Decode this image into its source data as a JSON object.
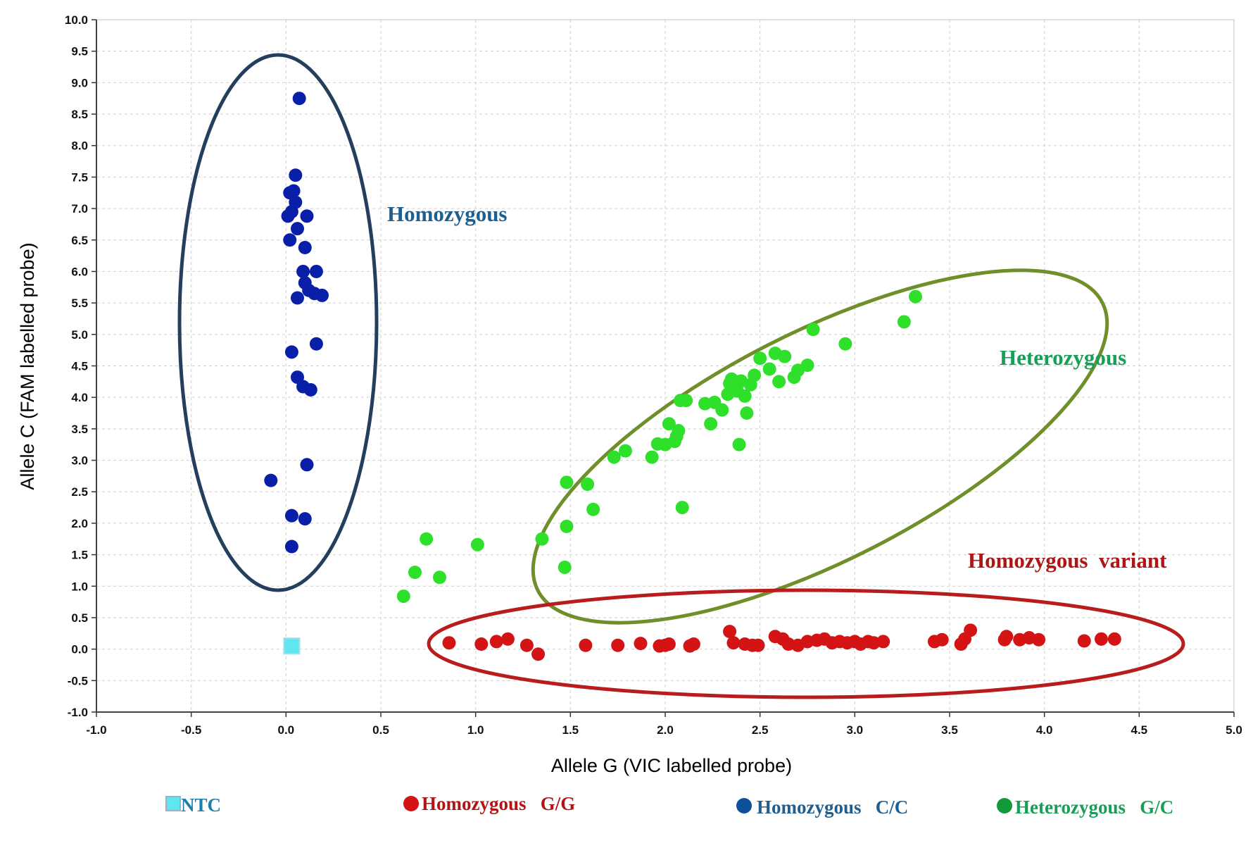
{
  "chart_data": {
    "type": "scatter",
    "xlabel": "Allele G (VIC labelled probe)",
    "ylabel": "Allele C (FAM labelled probe)",
    "xlim": [
      -1.0,
      5.0
    ],
    "ylim": [
      -1.0,
      10.0
    ],
    "x_ticks": [
      "-1.0",
      "-0.5",
      "0.0",
      "0.5",
      "1.0",
      "1.5",
      "2.0",
      "2.5",
      "3.0",
      "3.5",
      "4.0",
      "4.5",
      "5.0"
    ],
    "y_ticks": [
      "-1.0",
      "-0.5",
      "0.0",
      "0.5",
      "1.0",
      "1.5",
      "2.0",
      "2.5",
      "3.0",
      "3.5",
      "4.0",
      "4.5",
      "5.0",
      "5.5",
      "6.0",
      "6.5",
      "7.0",
      "7.5",
      "8.0",
      "8.5",
      "9.0",
      "9.5",
      "10.0"
    ],
    "grid": true,
    "legend_position": "bottom",
    "annotations": [
      {
        "text": "Homozygous",
        "color": "#1f5f8f"
      },
      {
        "text": "Heterozygous",
        "color": "#17a055"
      },
      {
        "text": "Homozygous  variant",
        "color": "#b01414"
      }
    ],
    "series": [
      {
        "name": "NTC",
        "legend_label": "NTC",
        "color": "#5fe6ee",
        "marker": "square",
        "points": [
          [
            0.03,
            0.05
          ]
        ]
      },
      {
        "name": "Homozygous G/G",
        "legend_label": "Homozygous   G/G",
        "color": "#d41414",
        "marker": "circle",
        "points": [
          [
            0.86,
            0.1
          ],
          [
            1.03,
            0.08
          ],
          [
            1.11,
            0.12
          ],
          [
            1.17,
            0.16
          ],
          [
            1.27,
            0.06
          ],
          [
            1.33,
            -0.08
          ],
          [
            1.58,
            0.06
          ],
          [
            1.75,
            0.06
          ],
          [
            1.87,
            0.09
          ],
          [
            1.97,
            0.05
          ],
          [
            2.0,
            0.06
          ],
          [
            2.02,
            0.08
          ],
          [
            2.13,
            0.05
          ],
          [
            2.15,
            0.08
          ],
          [
            2.34,
            0.28
          ],
          [
            2.36,
            0.1
          ],
          [
            2.42,
            0.08
          ],
          [
            2.46,
            0.06
          ],
          [
            2.49,
            0.06
          ],
          [
            2.58,
            0.2
          ],
          [
            2.62,
            0.16
          ],
          [
            2.65,
            0.08
          ],
          [
            2.7,
            0.06
          ],
          [
            2.75,
            0.12
          ],
          [
            2.8,
            0.14
          ],
          [
            2.84,
            0.16
          ],
          [
            2.88,
            0.1
          ],
          [
            2.92,
            0.12
          ],
          [
            2.96,
            0.1
          ],
          [
            3.0,
            0.12
          ],
          [
            3.03,
            0.08
          ],
          [
            3.07,
            0.12
          ],
          [
            3.1,
            0.1
          ],
          [
            3.15,
            0.12
          ],
          [
            3.42,
            0.12
          ],
          [
            3.46,
            0.15
          ],
          [
            3.56,
            0.08
          ],
          [
            3.58,
            0.16
          ],
          [
            3.61,
            0.3
          ],
          [
            3.79,
            0.15
          ],
          [
            3.8,
            0.2
          ],
          [
            3.87,
            0.15
          ],
          [
            3.92,
            0.18
          ],
          [
            3.97,
            0.15
          ],
          [
            4.21,
            0.13
          ],
          [
            4.3,
            0.16
          ],
          [
            4.37,
            0.16
          ]
        ]
      },
      {
        "name": "Homozygous C/C",
        "legend_label": "Homozygous   C/C",
        "color": "#0a1fa8",
        "marker": "circle",
        "points": [
          [
            0.07,
            8.75
          ],
          [
            0.05,
            7.53
          ],
          [
            0.04,
            7.28
          ],
          [
            0.02,
            7.25
          ],
          [
            0.05,
            7.1
          ],
          [
            0.03,
            6.95
          ],
          [
            0.01,
            6.88
          ],
          [
            0.11,
            6.88
          ],
          [
            0.06,
            6.68
          ],
          [
            0.02,
            6.5
          ],
          [
            0.1,
            6.38
          ],
          [
            0.09,
            6.0
          ],
          [
            0.16,
            6.0
          ],
          [
            0.1,
            5.82
          ],
          [
            0.12,
            5.7
          ],
          [
            0.15,
            5.65
          ],
          [
            0.19,
            5.62
          ],
          [
            0.06,
            5.58
          ],
          [
            0.03,
            4.72
          ],
          [
            0.16,
            4.85
          ],
          [
            0.06,
            4.32
          ],
          [
            0.09,
            4.17
          ],
          [
            0.13,
            4.12
          ],
          [
            0.11,
            2.93
          ],
          [
            -0.08,
            2.68
          ],
          [
            0.03,
            2.12
          ],
          [
            0.1,
            2.07
          ],
          [
            0.03,
            1.63
          ]
        ]
      },
      {
        "name": "Heterozygous G/C",
        "legend_label": "Heterozygous   G/C",
        "color": "#2ee02a",
        "marker": "circle",
        "points": [
          [
            0.62,
            0.84
          ],
          [
            0.68,
            1.22
          ],
          [
            0.74,
            1.75
          ],
          [
            0.81,
            1.14
          ],
          [
            1.01,
            1.66
          ],
          [
            1.35,
            1.75
          ],
          [
            1.47,
            1.3
          ],
          [
            1.48,
            2.65
          ],
          [
            1.48,
            1.95
          ],
          [
            1.59,
            2.62
          ],
          [
            1.62,
            2.22
          ],
          [
            1.73,
            3.05
          ],
          [
            1.79,
            3.15
          ],
          [
            1.93,
            3.05
          ],
          [
            1.96,
            3.26
          ],
          [
            2.0,
            3.25
          ],
          [
            2.02,
            3.58
          ],
          [
            2.05,
            3.3
          ],
          [
            2.06,
            3.38
          ],
          [
            2.07,
            3.47
          ],
          [
            2.08,
            3.95
          ],
          [
            2.11,
            3.95
          ],
          [
            2.09,
            2.25
          ],
          [
            2.21,
            3.9
          ],
          [
            2.24,
            3.58
          ],
          [
            2.26,
            3.92
          ],
          [
            2.3,
            3.8
          ],
          [
            2.33,
            4.05
          ],
          [
            2.34,
            4.22
          ],
          [
            2.35,
            4.29
          ],
          [
            2.36,
            4.15
          ],
          [
            2.38,
            4.1
          ],
          [
            2.39,
            3.25
          ],
          [
            2.4,
            4.26
          ],
          [
            2.42,
            4.02
          ],
          [
            2.43,
            3.75
          ],
          [
            2.45,
            4.2
          ],
          [
            2.47,
            4.35
          ],
          [
            2.5,
            4.62
          ],
          [
            2.55,
            4.45
          ],
          [
            2.58,
            4.7
          ],
          [
            2.6,
            4.25
          ],
          [
            2.63,
            4.65
          ],
          [
            2.68,
            4.32
          ],
          [
            2.7,
            4.43
          ],
          [
            2.75,
            4.51
          ],
          [
            2.78,
            5.08
          ],
          [
            2.95,
            4.85
          ],
          [
            3.26,
            5.2
          ],
          [
            3.32,
            5.6
          ]
        ]
      }
    ]
  }
}
